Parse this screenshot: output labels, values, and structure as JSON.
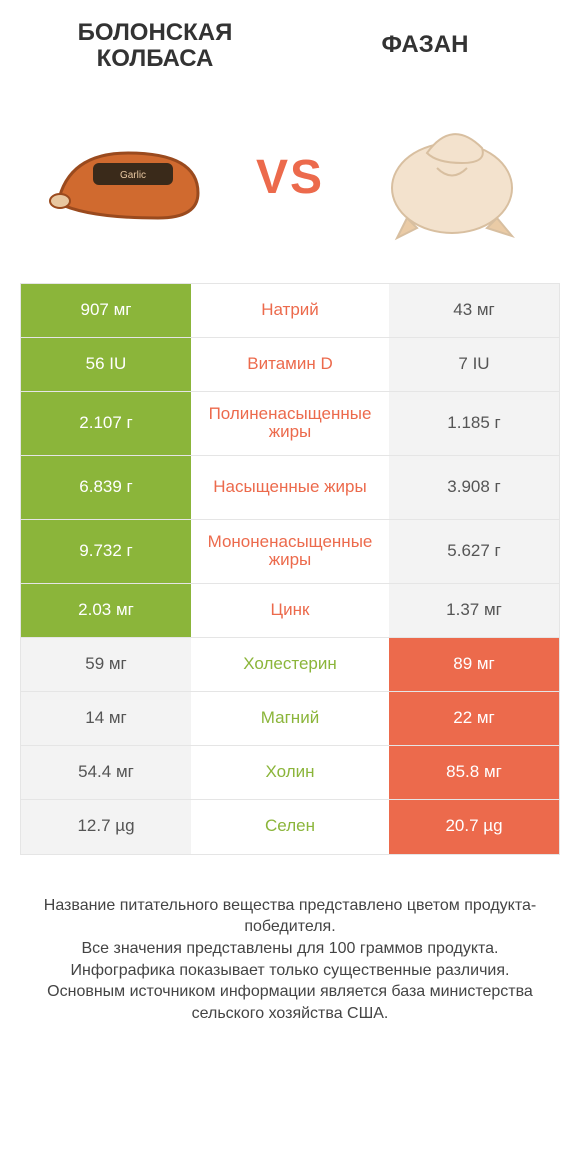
{
  "colors": {
    "green": "#8bb53a",
    "orange": "#ec6a4c",
    "row_border": "#e5e5e5",
    "grey_bg": "#f3f3f3",
    "text": "#333333",
    "footer_text": "#444444",
    "white": "#ffffff"
  },
  "typography": {
    "title_fontsize": 24,
    "vs_fontsize": 48,
    "cell_fontsize": 17,
    "footer_fontsize": 16
  },
  "header": {
    "left_title": "БОЛОНСКАЯ КОЛБАСА",
    "right_title": "ФАЗАН",
    "vs": "VS"
  },
  "comparison": {
    "type": "table",
    "columns": [
      "left_value",
      "nutrient",
      "right_value"
    ],
    "rows": [
      {
        "left": "907 мг",
        "mid": "Натрий",
        "right": "43 мг",
        "winner": "left",
        "tall": false
      },
      {
        "left": "56 IU",
        "mid": "Витамин D",
        "right": "7 IU",
        "winner": "left",
        "tall": false
      },
      {
        "left": "2.107 г",
        "mid": "Полиненасыщенные жиры",
        "right": "1.185 г",
        "winner": "left",
        "tall": true
      },
      {
        "left": "6.839 г",
        "mid": "Насыщенные жиры",
        "right": "3.908 г",
        "winner": "left",
        "tall": true
      },
      {
        "left": "9.732 г",
        "mid": "Мононенасыщенные жиры",
        "right": "5.627 г",
        "winner": "left",
        "tall": true
      },
      {
        "left": "2.03 мг",
        "mid": "Цинк",
        "right": "1.37 мг",
        "winner": "left",
        "tall": false
      },
      {
        "left": "59 мг",
        "mid": "Холестерин",
        "right": "89 мг",
        "winner": "right",
        "tall": false
      },
      {
        "left": "14 мг",
        "mid": "Магний",
        "right": "22 мг",
        "winner": "right",
        "tall": false
      },
      {
        "left": "54.4 мг",
        "mid": "Холин",
        "right": "85.8 мг",
        "winner": "right",
        "tall": false
      },
      {
        "left": "12.7 µg",
        "mid": "Селен",
        "right": "20.7 µg",
        "winner": "right",
        "tall": false
      }
    ]
  },
  "footer": {
    "lines": [
      "Название питательного вещества представлено цветом продукта-победителя.",
      "Все значения представлены для 100 граммов продукта.",
      "Инфографика показывает только существенные различия.",
      "Основным источником информации является база министерства сельского хозяйства США."
    ]
  }
}
